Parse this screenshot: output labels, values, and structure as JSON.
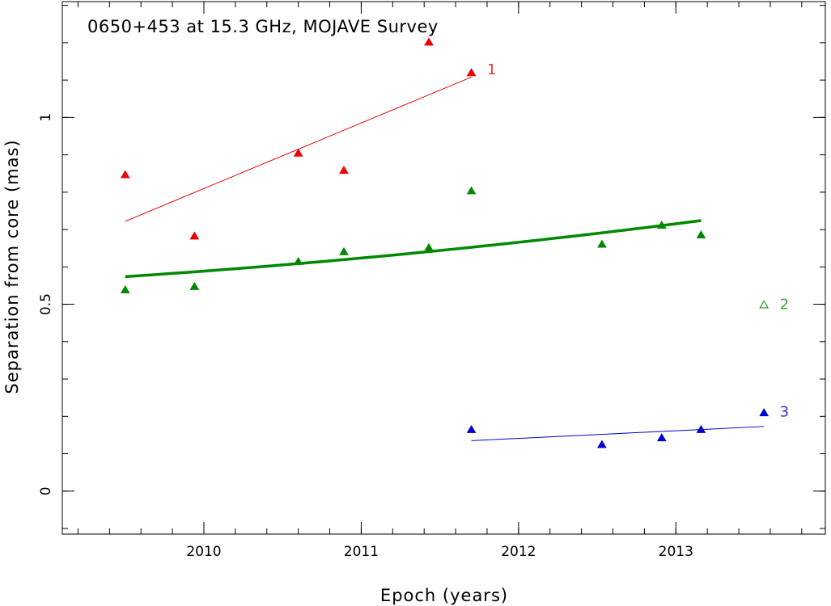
{
  "chart_data": {
    "type": "scatter",
    "title": "0650+453 at 15.3 GHz, MOJAVE Survey",
    "xlabel": "Epoch (years)",
    "ylabel": "Separation from core (mas)",
    "xlim": [
      2009.1,
      2013.95
    ],
    "ylim": [
      -0.115,
      1.31
    ],
    "xticks": [
      {
        "value": 2010,
        "label": "2010"
      },
      {
        "value": 2011,
        "label": "2011"
      },
      {
        "value": 2012,
        "label": "2012"
      },
      {
        "value": 2013,
        "label": "2013"
      }
    ],
    "yticks": [
      {
        "value": 0,
        "label": "0"
      },
      {
        "value": 0.5,
        "label": "0.5"
      },
      {
        "value": 1,
        "label": "1"
      }
    ],
    "x_minor_step": 0.2,
    "y_minor_step": 0.1,
    "grid": false,
    "series": [
      {
        "name": "1",
        "color": "#ee0000",
        "points": [
          {
            "x": 2009.5,
            "y": 0.845
          },
          {
            "x": 2009.94,
            "y": 0.681
          },
          {
            "x": 2010.6,
            "y": 0.903
          },
          {
            "x": 2010.89,
            "y": 0.857
          },
          {
            "x": 2011.43,
            "y": 1.2
          },
          {
            "x": 2011.7,
            "y": 1.118
          }
        ],
        "fit": {
          "kind": "linear",
          "x": [
            2009.5,
            2011.7
          ],
          "y": [
            0.722,
            1.108
          ]
        }
      },
      {
        "name": "2",
        "color": "#008800",
        "points": [
          {
            "x": 2009.5,
            "y": 0.537
          },
          {
            "x": 2009.94,
            "y": 0.546
          },
          {
            "x": 2010.6,
            "y": 0.613
          },
          {
            "x": 2010.89,
            "y": 0.639
          },
          {
            "x": 2011.43,
            "y": 0.65
          },
          {
            "x": 2011.7,
            "y": 0.802
          },
          {
            "x": 2012.53,
            "y": 0.659
          },
          {
            "x": 2012.91,
            "y": 0.71
          },
          {
            "x": 2013.16,
            "y": 0.684
          },
          {
            "x": 2013.56,
            "y": 0.497,
            "open": true
          }
        ],
        "fit": {
          "kind": "quadratic",
          "x": [
            2009.5,
            2011.43,
            2013.16
          ],
          "y": [
            0.574,
            0.641,
            0.724
          ]
        }
      },
      {
        "name": "3",
        "color": "#0000cc",
        "points": [
          {
            "x": 2011.7,
            "y": 0.163
          },
          {
            "x": 2012.53,
            "y": 0.123
          },
          {
            "x": 2012.91,
            "y": 0.141
          },
          {
            "x": 2013.16,
            "y": 0.163
          },
          {
            "x": 2013.56,
            "y": 0.208
          }
        ],
        "fit": {
          "kind": "linear",
          "x": [
            2011.7,
            2013.56
          ],
          "y": [
            0.135,
            0.173
          ]
        }
      }
    ],
    "labels": [
      {
        "text": "1",
        "x": 2011.8,
        "y": 1.128,
        "color": "#ee3333"
      },
      {
        "text": "2",
        "x": 2013.66,
        "y": 0.5,
        "color": "#33aa33"
      },
      {
        "text": "3",
        "x": 2013.66,
        "y": 0.213,
        "color": "#3333dd"
      }
    ]
  }
}
